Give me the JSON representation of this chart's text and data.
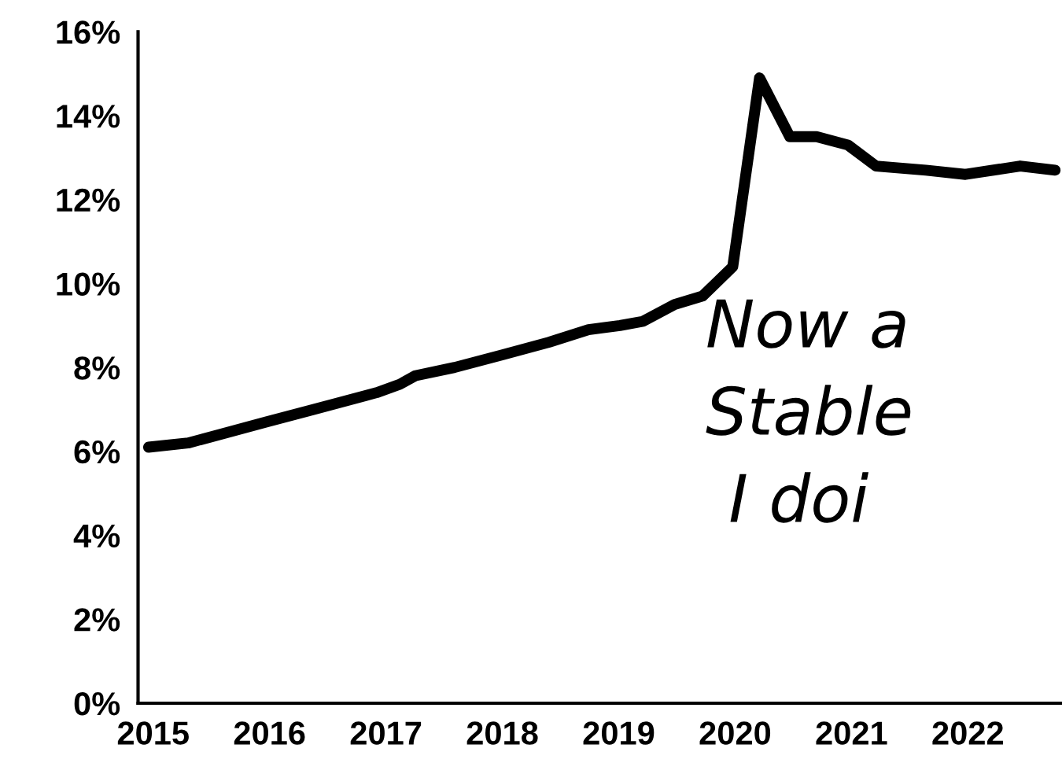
{
  "chart_data": {
    "type": "line",
    "x": [
      2014.96,
      2015.3,
      2015.57,
      2015.97,
      2016.38,
      2016.92,
      2017.12,
      2017.25,
      2017.59,
      2018.0,
      2018.4,
      2018.74,
      2019.01,
      2019.21,
      2019.48,
      2019.72,
      2019.98,
      2020.21,
      2020.47,
      2020.7,
      2020.97,
      2021.21,
      2021.64,
      2021.98,
      2022.45,
      2022.75
    ],
    "series": [
      {
        "color": "#000000",
        "values": [
          6.1,
          6.2,
          6.4,
          6.7,
          7.0,
          7.4,
          7.6,
          7.8,
          8.0,
          8.3,
          8.6,
          8.9,
          9.0,
          9.1,
          9.5,
          9.7,
          10.4,
          14.9,
          13.5,
          13.5,
          13.3,
          12.8,
          12.7,
          12.6,
          12.8,
          12.7
        ]
      }
    ],
    "xlim": [
      2014.87,
      2022.8
    ],
    "xticks": [
      2015,
      2016,
      2017,
      2018,
      2019,
      2020,
      2021,
      2022
    ],
    "ylim": [
      0,
      16
    ],
    "yticks": [
      {
        "value": 0,
        "label": "0%"
      },
      {
        "value": 2,
        "label": "2%"
      },
      {
        "value": 4,
        "label": "4%"
      },
      {
        "value": 6,
        "label": "6%"
      },
      {
        "value": 8,
        "label": "8%"
      },
      {
        "value": 10,
        "label": "10%"
      },
      {
        "value": 12,
        "label": "12%"
      },
      {
        "value": 14,
        "label": "14%"
      },
      {
        "value": 16,
        "label": "16%"
      }
    ],
    "grid": false,
    "legend": false,
    "marker": "none",
    "line_style": "solid",
    "annotations": [
      "Now a",
      "Stable",
      "I doi"
    ]
  }
}
